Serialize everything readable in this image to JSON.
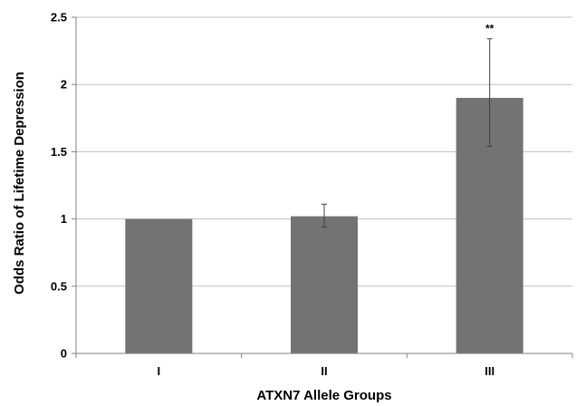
{
  "chart_data": {
    "type": "bar",
    "title": "",
    "xlabel": "ATXN7 Allele Groups",
    "ylabel": "Odds Ratio of Lifetime Depression",
    "categories": [
      "I",
      "II",
      "III"
    ],
    "values": [
      1.0,
      1.02,
      1.9
    ],
    "error_bars": [
      {
        "low": 1.0,
        "high": 1.0
      },
      {
        "low": 0.94,
        "high": 1.11
      },
      {
        "low": 1.54,
        "high": 2.34
      }
    ],
    "annotations": [
      "",
      "",
      "**"
    ],
    "ylim": [
      0,
      2.5
    ],
    "yticks": [
      0,
      0.5,
      1,
      1.5,
      2,
      2.5
    ],
    "ytick_labels": [
      "0",
      "0.5",
      "1",
      "1.5",
      "2",
      "2.5"
    ],
    "grid": true,
    "legend": "none",
    "colors": {
      "bar": "#737373",
      "grid": "#bfbfbf",
      "axis": "#808080",
      "error_bar": "#404040"
    }
  }
}
